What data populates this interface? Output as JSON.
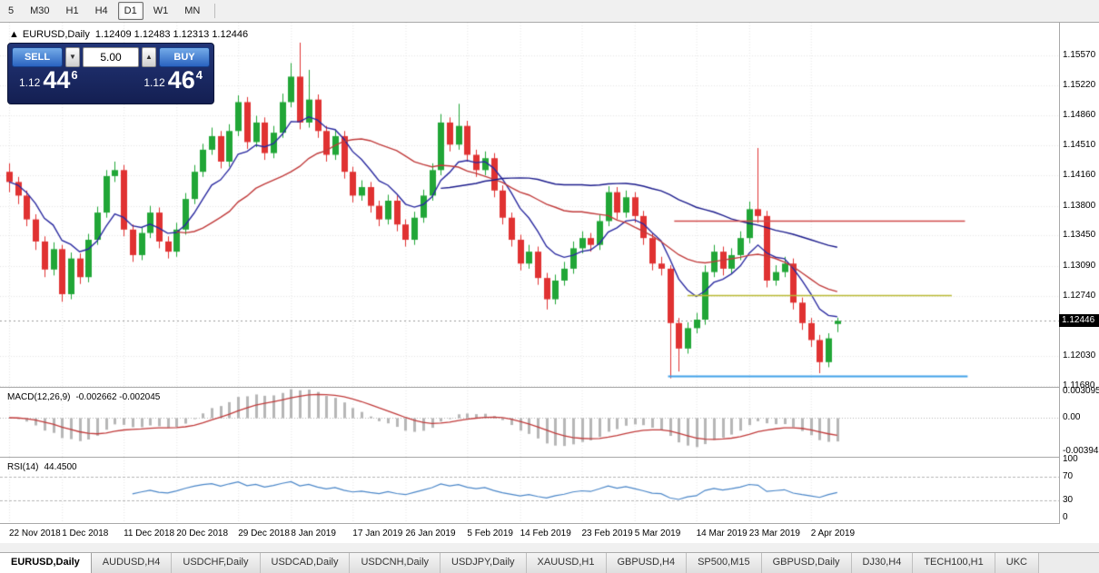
{
  "toolbar": {
    "buttons": [
      {
        "label": "5",
        "active": false
      },
      {
        "label": "M30",
        "active": false
      },
      {
        "label": "H1",
        "active": false
      },
      {
        "label": "H4",
        "active": false
      },
      {
        "label": "D1",
        "active": true
      },
      {
        "label": "W1",
        "active": false
      },
      {
        "label": "MN",
        "active": false
      }
    ]
  },
  "chart_header": {
    "collapse_icon": "▲",
    "symbol": "EURUSD,Daily",
    "ohlc": "1.12409 1.12483 1.12313 1.12446"
  },
  "trade_panel": {
    "sell_label": "SELL",
    "buy_label": "BUY",
    "lot_value": "5.00",
    "down_arrow": "▼",
    "up_arrow": "▲",
    "sell_price_small": "1.12",
    "sell_price_big": "44",
    "sell_price_sup": "6",
    "buy_price_small": "1.12",
    "buy_price_big": "46",
    "buy_price_sup": "4"
  },
  "price_axis": {
    "ticks": [
      {
        "label": "1.15570",
        "price": 1.1557
      },
      {
        "label": "1.15220",
        "price": 1.1522
      },
      {
        "label": "1.14860",
        "price": 1.1486
      },
      {
        "label": "1.14510",
        "price": 1.1451
      },
      {
        "label": "1.14160",
        "price": 1.1416
      },
      {
        "label": "1.13800",
        "price": 1.138
      },
      {
        "label": "1.13450",
        "price": 1.1345
      },
      {
        "label": "1.13090",
        "price": 1.1309
      },
      {
        "label": "1.12740",
        "price": 1.1274
      },
      {
        "label": "1.12030",
        "price": 1.1203
      },
      {
        "label": "1.11680",
        "price": 1.1168
      }
    ],
    "current": {
      "label": "1.12446",
      "price": 1.12446
    }
  },
  "macd_panel": {
    "title": "MACD(12,26,9)",
    "values": "-0.002662 -0.002045",
    "axis": [
      {
        "label": "0.003095",
        "value": 0.003095
      },
      {
        "label": "0.00",
        "value": 0
      },
      {
        "label": "-0.003947",
        "value": -0.003947
      }
    ]
  },
  "rsi_panel": {
    "title": "RSI(14)",
    "value": "44.4500",
    "axis": [
      {
        "label": "100",
        "value": 100
      },
      {
        "label": "70",
        "value": 70
      },
      {
        "label": "30",
        "value": 30
      },
      {
        "label": "0",
        "value": 0
      }
    ],
    "levels": [
      70,
      30
    ]
  },
  "date_axis": [
    {
      "label": "22 Nov 2018",
      "index": 0
    },
    {
      "label": "1 Dec 2018",
      "index": 6
    },
    {
      "label": "11 Dec 2018",
      "index": 13
    },
    {
      "label": "20 Dec 2018",
      "index": 19
    },
    {
      "label": "29 Dec 2018",
      "index": 26
    },
    {
      "label": "8 Jan 2019",
      "index": 32
    },
    {
      "label": "17 Jan 2019",
      "index": 39
    },
    {
      "label": "26 Jan 2019",
      "index": 45
    },
    {
      "label": "5 Feb 2019",
      "index": 52
    },
    {
      "label": "14 Feb 2019",
      "index": 58
    },
    {
      "label": "23 Feb 2019",
      "index": 65
    },
    {
      "label": "5 Mar 2019",
      "index": 71
    },
    {
      "label": "14 Mar 2019",
      "index": 78
    },
    {
      "label": "23 Mar 2019",
      "index": 84
    },
    {
      "label": "2 Apr 2019",
      "index": 91
    }
  ],
  "tabs": {
    "items": [
      {
        "label": "EURUSD,Daily",
        "active": true
      },
      {
        "label": "AUDUSD,H4",
        "active": false
      },
      {
        "label": "USDCHF,Daily",
        "active": false
      },
      {
        "label": "USDCAD,Daily",
        "active": false
      },
      {
        "label": "USDCNH,Daily",
        "active": false
      },
      {
        "label": "USDJPY,Daily",
        "active": false
      },
      {
        "label": "XAUUSD,H1",
        "active": false
      },
      {
        "label": "GBPUSD,H4",
        "active": false
      },
      {
        "label": "SP500,M15",
        "active": false
      },
      {
        "label": "GBPUSD,Daily",
        "active": false
      },
      {
        "label": "DJ30,H4",
        "active": false
      },
      {
        "label": "TECH100,H1",
        "active": false
      },
      {
        "label": "UKC",
        "active": false
      }
    ]
  },
  "colors": {
    "candle_up": "#21a637",
    "candle_down": "#e03232",
    "ma_fast_blue": "#2a2aa0",
    "ma_red": "#c03a3a",
    "ma_slow_blue": "#1c1c8c",
    "macd_hist": "#b6b6b6",
    "macd_signal": "#c03a3a",
    "rsi_line": "#4a86c8",
    "hline_red": "#d04a4a",
    "hline_olive": "#b8b832",
    "hline_blue": "#3fa0e8",
    "grid": "#e4e4e4",
    "level_dash": "#b4b4b4",
    "bid_line": "#9a9a9a",
    "tag_bg": "#000000"
  },
  "chart_data": {
    "type": "candlestick",
    "symbol": "EURUSD",
    "timeframe": "Daily",
    "y_range": [
      1.1168,
      1.1557
    ],
    "ohlc": [
      [
        1.142,
        1.143,
        1.1396,
        1.1408
      ],
      [
        1.1408,
        1.1414,
        1.1382,
        1.1392
      ],
      [
        1.1392,
        1.1398,
        1.1356,
        1.1364
      ],
      [
        1.1364,
        1.137,
        1.1328,
        1.1338
      ],
      [
        1.1338,
        1.1344,
        1.1296,
        1.1305
      ],
      [
        1.1305,
        1.1337,
        1.1298,
        1.1329
      ],
      [
        1.1329,
        1.1334,
        1.1267,
        1.1276
      ],
      [
        1.1276,
        1.1325,
        1.127,
        1.1318
      ],
      [
        1.1318,
        1.1324,
        1.1288,
        1.1296
      ],
      [
        1.1296,
        1.1347,
        1.129,
        1.134
      ],
      [
        1.134,
        1.1379,
        1.1334,
        1.1372
      ],
      [
        1.1372,
        1.1422,
        1.1366,
        1.1415
      ],
      [
        1.1415,
        1.1432,
        1.1408,
        1.1422
      ],
      [
        1.1422,
        1.1428,
        1.1344,
        1.1352
      ],
      [
        1.1352,
        1.1358,
        1.1314,
        1.1322
      ],
      [
        1.1322,
        1.1355,
        1.1316,
        1.1348
      ],
      [
        1.1348,
        1.138,
        1.1342,
        1.1372
      ],
      [
        1.1372,
        1.1378,
        1.133,
        1.1338
      ],
      [
        1.1338,
        1.1344,
        1.1318,
        1.1326
      ],
      [
        1.1326,
        1.136,
        1.132,
        1.1352
      ],
      [
        1.1352,
        1.1395,
        1.1346,
        1.1388
      ],
      [
        1.1388,
        1.1428,
        1.1382,
        1.142
      ],
      [
        1.142,
        1.1453,
        1.1414,
        1.1446
      ],
      [
        1.1446,
        1.1472,
        1.144,
        1.1462
      ],
      [
        1.1462,
        1.1468,
        1.1424,
        1.1432
      ],
      [
        1.1432,
        1.1476,
        1.1426,
        1.1468
      ],
      [
        1.1468,
        1.151,
        1.1462,
        1.1502
      ],
      [
        1.1502,
        1.1508,
        1.1447,
        1.1455
      ],
      [
        1.1455,
        1.1486,
        1.1449,
        1.1478
      ],
      [
        1.1478,
        1.1484,
        1.1434,
        1.1442
      ],
      [
        1.1442,
        1.1474,
        1.1436,
        1.1466
      ],
      [
        1.1466,
        1.1512,
        1.146,
        1.1502
      ],
      [
        1.1502,
        1.1548,
        1.1496,
        1.1532
      ],
      [
        1.1532,
        1.1572,
        1.147,
        1.1478
      ],
      [
        1.1478,
        1.154,
        1.1472,
        1.1505
      ],
      [
        1.1505,
        1.1511,
        1.146,
        1.1468
      ],
      [
        1.1468,
        1.1474,
        1.1432,
        1.144
      ],
      [
        1.144,
        1.147,
        1.1434,
        1.1462
      ],
      [
        1.1462,
        1.1468,
        1.1412,
        1.142
      ],
      [
        1.142,
        1.1426,
        1.1384,
        1.1392
      ],
      [
        1.1392,
        1.141,
        1.1386,
        1.1402
      ],
      [
        1.1402,
        1.1408,
        1.1372,
        1.138
      ],
      [
        1.138,
        1.1386,
        1.1356,
        1.1364
      ],
      [
        1.1364,
        1.1393,
        1.1358,
        1.1386
      ],
      [
        1.1386,
        1.1392,
        1.135,
        1.1358
      ],
      [
        1.1358,
        1.1364,
        1.1332,
        1.134
      ],
      [
        1.134,
        1.1373,
        1.1334,
        1.1366
      ],
      [
        1.1366,
        1.1399,
        1.136,
        1.1392
      ],
      [
        1.1392,
        1.143,
        1.1386,
        1.1422
      ],
      [
        1.1422,
        1.1488,
        1.1416,
        1.1478
      ],
      [
        1.1478,
        1.1484,
        1.1444,
        1.1452
      ],
      [
        1.1452,
        1.15,
        1.1446,
        1.1474
      ],
      [
        1.1474,
        1.148,
        1.1432,
        1.144
      ],
      [
        1.144,
        1.1446,
        1.1414,
        1.1422
      ],
      [
        1.1422,
        1.1444,
        1.1416,
        1.1436
      ],
      [
        1.1436,
        1.1442,
        1.139,
        1.1398
      ],
      [
        1.1398,
        1.1404,
        1.1358,
        1.1366
      ],
      [
        1.1366,
        1.1372,
        1.1332,
        1.134
      ],
      [
        1.134,
        1.1346,
        1.1304,
        1.1312
      ],
      [
        1.1312,
        1.1334,
        1.1306,
        1.1326
      ],
      [
        1.1326,
        1.1332,
        1.1287,
        1.1295
      ],
      [
        1.1295,
        1.1301,
        1.1258,
        1.127
      ],
      [
        1.127,
        1.1299,
        1.1264,
        1.1292
      ],
      [
        1.1292,
        1.1314,
        1.1286,
        1.1306
      ],
      [
        1.1306,
        1.1338,
        1.13,
        1.133
      ],
      [
        1.133,
        1.135,
        1.1324,
        1.1342
      ],
      [
        1.1342,
        1.1348,
        1.1326,
        1.1334
      ],
      [
        1.1334,
        1.137,
        1.1328,
        1.1362
      ],
      [
        1.1362,
        1.1403,
        1.1356,
        1.1396
      ],
      [
        1.1396,
        1.1402,
        1.1364,
        1.1372
      ],
      [
        1.1372,
        1.1398,
        1.1366,
        1.139
      ],
      [
        1.139,
        1.1396,
        1.136,
        1.1368
      ],
      [
        1.1368,
        1.1374,
        1.1334,
        1.1342
      ],
      [
        1.1342,
        1.1348,
        1.1304,
        1.1312
      ],
      [
        1.1312,
        1.132,
        1.1298,
        1.1306
      ],
      [
        1.1306,
        1.131,
        1.1177,
        1.1242
      ],
      [
        1.1242,
        1.1248,
        1.1185,
        1.1212
      ],
      [
        1.1212,
        1.1243,
        1.1206,
        1.1236
      ],
      [
        1.1236,
        1.1254,
        1.123,
        1.1246
      ],
      [
        1.1246,
        1.131,
        1.124,
        1.1302
      ],
      [
        1.1302,
        1.1334,
        1.1296,
        1.1326
      ],
      [
        1.1326,
        1.1332,
        1.1298,
        1.1306
      ],
      [
        1.1306,
        1.133,
        1.13,
        1.1322
      ],
      [
        1.1322,
        1.135,
        1.1316,
        1.1342
      ],
      [
        1.1342,
        1.1385,
        1.1336,
        1.1376
      ],
      [
        1.1376,
        1.1448,
        1.136,
        1.1368
      ],
      [
        1.1368,
        1.1374,
        1.1284,
        1.1292
      ],
      [
        1.1292,
        1.131,
        1.1286,
        1.1302
      ],
      [
        1.1302,
        1.132,
        1.1296,
        1.1312
      ],
      [
        1.1312,
        1.1318,
        1.1258,
        1.1266
      ],
      [
        1.1266,
        1.1272,
        1.1234,
        1.1242
      ],
      [
        1.1242,
        1.1248,
        1.1214,
        1.1222
      ],
      [
        1.1222,
        1.1228,
        1.1183,
        1.1196
      ],
      [
        1.1196,
        1.123,
        1.119,
        1.1224
      ],
      [
        1.12409,
        1.12483,
        1.12313,
        1.12446
      ]
    ],
    "moving_averages": [
      {
        "period": 8,
        "method": "ema",
        "color_key": "ma_fast_blue"
      },
      {
        "period": 20,
        "method": "sma",
        "color_key": "ma_red"
      },
      {
        "period": 50,
        "method": "sma",
        "color_key": "ma_slow_blue"
      }
    ],
    "hlines": [
      {
        "price": 1.1362,
        "from_index": 75.5,
        "to_index": 108.5,
        "color_key": "hline_red",
        "width": 1.6
      },
      {
        "price": 1.1275,
        "from_index": 77.0,
        "to_index": 107.0,
        "color_key": "hline_olive",
        "width": 1.6
      },
      {
        "price": 1.118,
        "from_index": 74.8,
        "to_index": 108.8,
        "color_key": "hline_blue",
        "width": 1.8
      }
    ],
    "macd": {
      "fast": 12,
      "slow": 26,
      "signal": 9
    },
    "rsi": {
      "period": 14
    }
  }
}
